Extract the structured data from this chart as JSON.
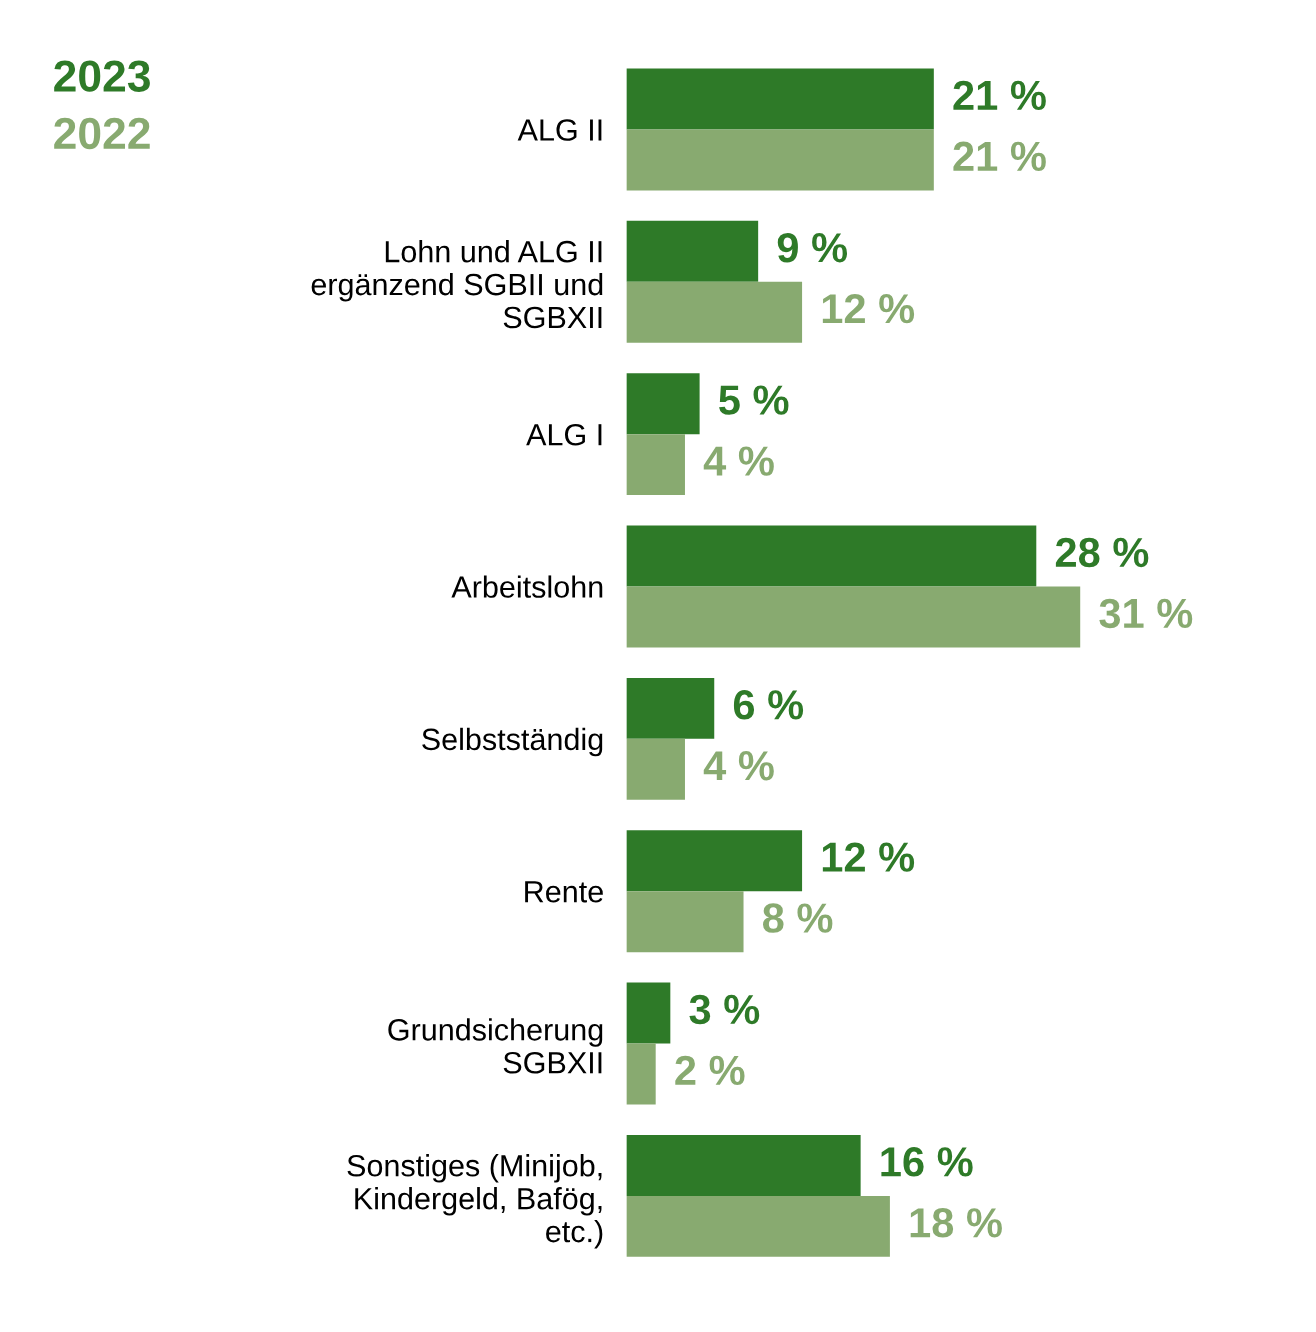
{
  "chart_data": {
    "type": "bar",
    "orientation": "horizontal",
    "legend": "top left",
    "categories": [
      "ALG II",
      "Lohn und ALG II\nergänzend SGBII und\nSGBXII",
      "ALG I",
      "Arbeitslohn",
      "Selbstständig",
      "Rente",
      "Grundsicherung\nSGBXII",
      "Sonstiges (Minijob,\nKindergeld, Bafög,\netc.)"
    ],
    "series": [
      {
        "name": "2023",
        "color": "#2e7a28",
        "values": [
          21,
          9,
          5,
          28,
          6,
          12,
          3,
          16
        ],
        "value_labels": [
          "21 %",
          "9 %",
          "5 %",
          "28 %",
          "6 %",
          "12 %",
          "3 %",
          "16 %"
        ]
      },
      {
        "name": "2022",
        "color": "#88aa70",
        "values": [
          21,
          12,
          4,
          31,
          4,
          8,
          2,
          18
        ],
        "value_labels": [
          "21 %",
          "12 %",
          "4 %",
          "31 %",
          "4 %",
          "8 %",
          "2 %",
          "18 %"
        ]
      }
    ]
  }
}
